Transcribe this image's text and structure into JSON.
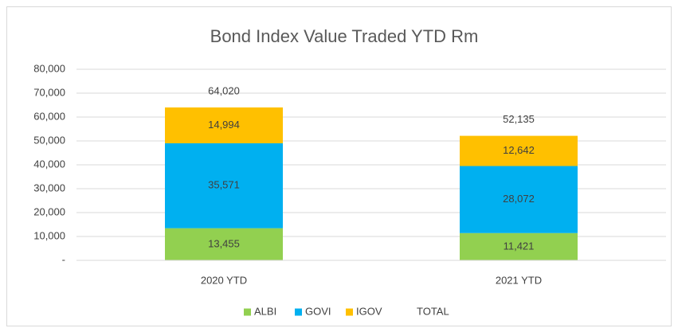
{
  "chart_data": {
    "type": "stacked_bar",
    "title": "Bond Index Value Traded YTD Rm",
    "categories": [
      "2020 YTD",
      "2021 YTD"
    ],
    "series": [
      {
        "name": "ALBI",
        "color": "#92d050",
        "values": [
          13455,
          11421
        ],
        "value_labels": [
          "13,455",
          "11,421"
        ]
      },
      {
        "name": "GOVI",
        "color": "#00b0f0",
        "values": [
          35571,
          28072
        ],
        "value_labels": [
          "35,571",
          "28,072"
        ]
      },
      {
        "name": "IGOV",
        "color": "#ffc000",
        "values": [
          14994,
          12642
        ],
        "value_labels": [
          "14,994",
          "12,642"
        ]
      },
      {
        "name": "TOTAL",
        "values": [
          64020,
          52135
        ],
        "value_labels": [
          "64,020",
          "52,135"
        ]
      }
    ],
    "ylim": [
      0,
      80000
    ],
    "yticks": [
      {
        "value": 0,
        "label": "-"
      },
      {
        "value": 10000,
        "label": "10,000"
      },
      {
        "value": 20000,
        "label": "20,000"
      },
      {
        "value": 30000,
        "label": "30,000"
      },
      {
        "value": 40000,
        "label": "40,000"
      },
      {
        "value": 50000,
        "label": "50,000"
      },
      {
        "value": 60000,
        "label": "60,000"
      },
      {
        "value": 70000,
        "label": "70,000"
      },
      {
        "value": 80000,
        "label": "80,000"
      }
    ],
    "grid": true,
    "legend": "bottom"
  }
}
